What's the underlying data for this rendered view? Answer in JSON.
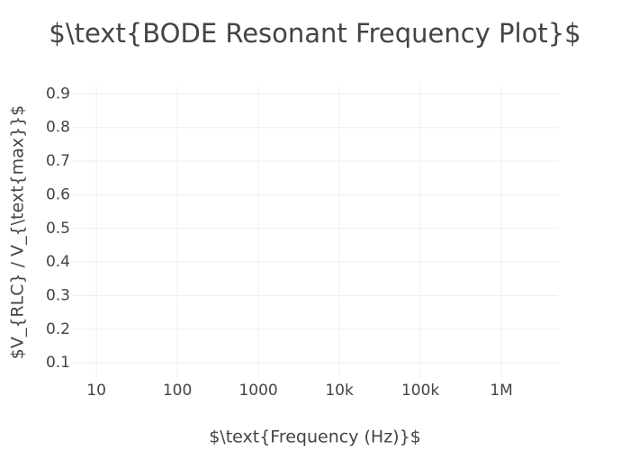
{
  "chart_data": {
    "type": "line",
    "title": "$\\text{BODE Resonant Frequency Plot}$",
    "x_label": "$\\text{Frequency (Hz)}$",
    "y_label": "$V_{RLC} / V_{\\text{max}}$",
    "xscale": "log",
    "xlim": [
      5,
      5000000
    ],
    "xticks": [
      10,
      100,
      1000,
      {
        "value": 10000,
        "label": "10k"
      },
      {
        "value": 100000,
        "label": "100k"
      },
      {
        "value": 1000000,
        "label": "1M"
      }
    ],
    "ylim": [
      0.055,
      0.925
    ],
    "yticks": [
      0.1,
      0.2,
      0.3,
      0.4,
      0.5,
      0.6,
      0.7,
      0.8,
      0.9
    ],
    "grid": true
  }
}
